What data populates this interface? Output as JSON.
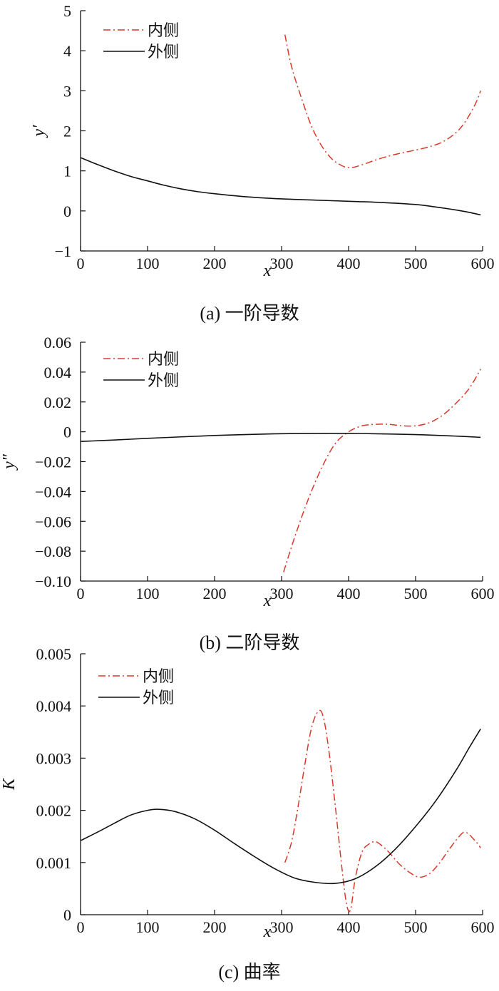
{
  "chart_data": [
    {
      "type": "line",
      "caption": "(a)  一阶导数",
      "xlabel": "x",
      "ylabel": "y′",
      "xlim": [
        0,
        600
      ],
      "ylim": [
        -1,
        5
      ],
      "xticks": [
        0,
        100,
        200,
        300,
        400,
        500,
        600
      ],
      "yticks": [
        -1,
        0,
        1,
        2,
        3,
        4,
        5
      ],
      "ytick_labels": [
        "−1",
        "0",
        "1",
        "2",
        "3",
        "4",
        "5"
      ],
      "grid": false,
      "legend": "top-left",
      "series": [
        {
          "name": "内侧",
          "style": "dash-dot",
          "color": "#d83a2a",
          "x": [
            305,
            315,
            330,
            345,
            360,
            375,
            390,
            400,
            410,
            425,
            440,
            460,
            480,
            500,
            520,
            540,
            560,
            575,
            590,
            597
          ],
          "y": [
            4.4,
            3.6,
            2.8,
            2.1,
            1.62,
            1.3,
            1.13,
            1.08,
            1.1,
            1.18,
            1.27,
            1.37,
            1.45,
            1.52,
            1.6,
            1.72,
            1.95,
            2.25,
            2.7,
            3.0
          ]
        },
        {
          "name": "外侧",
          "style": "solid",
          "color": "#111111",
          "x": [
            0,
            25,
            50,
            75,
            100,
            125,
            150,
            175,
            200,
            250,
            300,
            350,
            400,
            450,
            500,
            525,
            550,
            575,
            597
          ],
          "y": [
            1.33,
            1.16,
            1.0,
            0.86,
            0.75,
            0.64,
            0.55,
            0.48,
            0.43,
            0.35,
            0.3,
            0.27,
            0.24,
            0.21,
            0.16,
            0.11,
            0.05,
            -0.02,
            -0.1
          ]
        }
      ]
    },
    {
      "type": "line",
      "caption": "(b)  二阶导数",
      "xlabel": "x",
      "ylabel": "y″",
      "xlim": [
        0,
        600
      ],
      "ylim": [
        -0.1,
        0.06
      ],
      "xticks": [
        0,
        100,
        200,
        300,
        400,
        500,
        600
      ],
      "yticks": [
        -0.1,
        -0.08,
        -0.06,
        -0.04,
        -0.02,
        0,
        0.02,
        0.04,
        0.06
      ],
      "ytick_labels": [
        "−0.10",
        "−0.08",
        "−0.06",
        "−0.04",
        "−0.02",
        "0",
        "0.02",
        "0.04",
        "0.06"
      ],
      "grid": false,
      "legend": "top-left",
      "series": [
        {
          "name": "内侧",
          "style": "dash-dot",
          "color": "#d83a2a",
          "x": [
            303,
            320,
            340,
            360,
            380,
            400,
            420,
            440,
            460,
            480,
            500,
            520,
            540,
            560,
            580,
            597
          ],
          "y": [
            -0.094,
            -0.07,
            -0.045,
            -0.024,
            -0.008,
            0.0,
            0.004,
            0.005,
            0.005,
            0.004,
            0.004,
            0.006,
            0.011,
            0.019,
            0.029,
            0.042
          ]
        },
        {
          "name": "外侧",
          "style": "solid",
          "color": "#111111",
          "x": [
            0,
            50,
            100,
            150,
            200,
            250,
            300,
            350,
            400,
            450,
            500,
            550,
            597
          ],
          "y": [
            -0.0065,
            -0.0055,
            -0.0044,
            -0.0034,
            -0.0025,
            -0.0018,
            -0.0013,
            -0.0011,
            -0.0011,
            -0.0014,
            -0.0019,
            -0.0027,
            -0.0037
          ]
        }
      ]
    },
    {
      "type": "line",
      "caption": "(c)  曲率",
      "xlabel": "x",
      "ylabel": "K",
      "xlim": [
        0,
        600
      ],
      "ylim": [
        0,
        0.005
      ],
      "xticks": [
        0,
        100,
        200,
        300,
        400,
        500,
        600
      ],
      "yticks": [
        0,
        0.001,
        0.002,
        0.003,
        0.004,
        0.005
      ],
      "ytick_labels": [
        "0",
        "0.001",
        "0.002",
        "0.003",
        "0.004",
        "0.005"
      ],
      "grid": false,
      "legend": "top-left",
      "series": [
        {
          "name": "内侧",
          "style": "dash-dot",
          "color": "#d83a2a",
          "x": [
            305,
            315,
            325,
            335,
            345,
            355,
            362,
            370,
            380,
            390,
            397,
            403,
            410,
            420,
            430,
            440,
            450,
            460,
            475,
            490,
            505,
            520,
            535,
            550,
            565,
            575,
            590,
            597
          ],
          "y": [
            0.001,
            0.0014,
            0.0021,
            0.0029,
            0.0036,
            0.0039,
            0.0038,
            0.0032,
            0.0021,
            0.0009,
            0.0002,
            0.0001,
            0.0007,
            0.0012,
            0.00135,
            0.0014,
            0.00132,
            0.0012,
            0.00098,
            0.00082,
            0.00072,
            0.00078,
            0.00098,
            0.00125,
            0.0015,
            0.00158,
            0.0014,
            0.00128
          ]
        },
        {
          "name": "外侧",
          "style": "solid",
          "color": "#111111",
          "x": [
            0,
            25,
            50,
            75,
            100,
            117,
            140,
            170,
            200,
            230,
            260,
            290,
            320,
            350,
            380,
            410,
            440,
            470,
            500,
            530,
            560,
            580,
            597
          ],
          "y": [
            0.00142,
            0.00158,
            0.00175,
            0.00191,
            0.002,
            0.00202,
            0.00198,
            0.00184,
            0.00162,
            0.00136,
            0.00111,
            0.00088,
            0.0007,
            0.00062,
            0.0006,
            0.00069,
            0.00092,
            0.00126,
            0.00169,
            0.00218,
            0.00276,
            0.0032,
            0.00356
          ]
        }
      ]
    }
  ]
}
